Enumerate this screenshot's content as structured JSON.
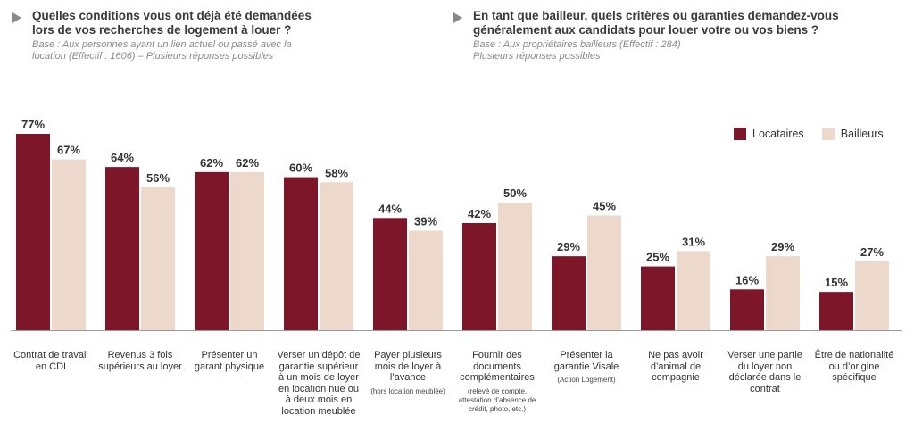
{
  "left_question": {
    "title_lines": [
      "Quelles conditions vous ont déjà été demandées",
      "lors de vos recherches de logement à louer ?"
    ],
    "base_lines": [
      "Base : Aux personnes ayant un lien actuel ou passé avec la",
      "location (Effectif : 1606) – Plusieurs réponses possibles"
    ]
  },
  "right_question": {
    "title_lines": [
      "En tant que bailleur, quels critères ou garanties demandez-vous",
      "généralement aux candidats pour louer votre ou vos biens ?"
    ],
    "base_lines": [
      "Base : Aux propriétaires bailleurs (Effectif : 284)",
      "Plusieurs réponses possibles"
    ]
  },
  "chart_data": {
    "type": "bar",
    "ylim": [
      0,
      77
    ],
    "legend_position": "top-right",
    "colors": {
      "Locataires": "#7d1628",
      "Bailleurs": "#ecd9cb"
    },
    "categories": [
      {
        "label": "Contrat de travail en CDI",
        "note": ""
      },
      {
        "label": "Revenus 3 fois supérieurs au loyer",
        "note": ""
      },
      {
        "label": "Présenter un garant physique",
        "note": ""
      },
      {
        "label": "Verser un dépôt de garantie supérieur à un mois de loyer en location nue ou à deux mois en location meublée",
        "note": ""
      },
      {
        "label": "Payer plusieurs mois de loyer à l’avance",
        "note": "(hors location meublée)"
      },
      {
        "label": "Fournir des documents complémentaires",
        "note": "(relevé de compte, attestation d’absence de crédit, photo, etc.)"
      },
      {
        "label": "Présenter la garantie Visale",
        "note": "(Action Logement)"
      },
      {
        "label": "Ne pas avoir d’animal de compagnie",
        "note": ""
      },
      {
        "label": "Verser une partie du loyer non déclarée dans le contrat",
        "note": ""
      },
      {
        "label": "Être de nationalité ou d’origine spécifique",
        "note": ""
      }
    ],
    "series": [
      {
        "name": "Locataires",
        "values": [
          77,
          64,
          62,
          60,
          44,
          42,
          29,
          25,
          16,
          15
        ]
      },
      {
        "name": "Bailleurs",
        "values": [
          67,
          56,
          62,
          58,
          39,
          50,
          45,
          31,
          29,
          27
        ]
      }
    ],
    "value_suffix": "%"
  }
}
